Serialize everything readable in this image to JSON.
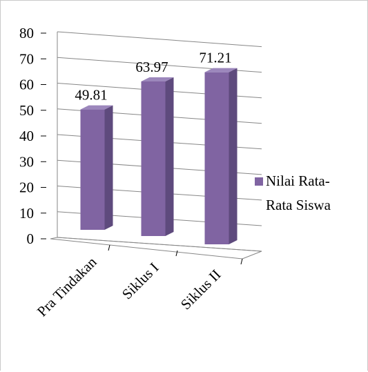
{
  "chart_data": {
    "type": "bar",
    "categories": [
      "Pra Tindakan",
      "Siklus I",
      "Siklus II"
    ],
    "series": [
      {
        "name": "Nilai Rata-Rata Siswa",
        "values": [
          49.81,
          63.97,
          71.21
        ]
      }
    ],
    "data_labels": [
      "49.81",
      "63.97",
      "71.21"
    ],
    "ylim": [
      0,
      80
    ],
    "yticks": [
      0,
      10,
      20,
      30,
      40,
      50,
      60,
      70,
      80
    ],
    "grid": true,
    "legend": {
      "position": "right",
      "lines": [
        "Nilai Rata-",
        "Rata Siswa"
      ]
    },
    "colors": {
      "bar_front": "#8064A2",
      "bar_side": "#5E4A7D",
      "bar_top": "#9C87BC",
      "grid": "#868686"
    },
    "style": "3d-column"
  }
}
